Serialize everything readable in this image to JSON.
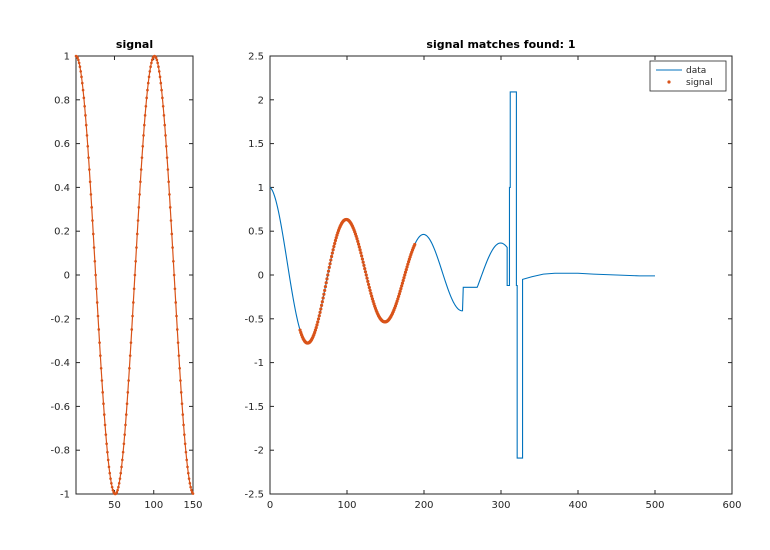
{
  "chart_data": [
    {
      "type": "line",
      "title": "signal",
      "xlim": [
        1,
        150
      ],
      "ylim": [
        -1,
        1
      ],
      "xticks": [
        50,
        100,
        150
      ],
      "yticks": [
        -1,
        -0.8,
        -0.6,
        -0.4,
        -0.2,
        0,
        0.2,
        0.4,
        0.6,
        0.8,
        1
      ],
      "xtick_labels": [
        "50",
        "100",
        "150"
      ],
      "ytick_labels": [
        "-1",
        "-0.8",
        "-0.6",
        "-0.4",
        "-0.2",
        "0",
        "0.2",
        "0.4",
        "0.6",
        "0.8",
        "1"
      ],
      "series": [
        {
          "name": "",
          "color": "#d95319",
          "marker": "dot",
          "x_start": 1,
          "x_end": 150,
          "function": "cos",
          "period": 100
        }
      ],
      "grid": false
    },
    {
      "type": "line",
      "title": "signal matches found: 1",
      "xlim": [
        0,
        600
      ],
      "ylim": [
        -2.5,
        2.5
      ],
      "xticks": [
        0,
        100,
        200,
        300,
        400,
        500,
        600
      ],
      "yticks": [
        -2.5,
        -2,
        -1.5,
        -1,
        -0.5,
        0,
        0.5,
        1,
        1.5,
        2,
        2.5
      ],
      "xtick_labels": [
        "0",
        "100",
        "200",
        "300",
        "400",
        "500",
        "600"
      ],
      "ytick_labels": [
        "-2.5",
        "-2",
        "-1.5",
        "-1",
        "-0.5",
        "0",
        "0.5",
        "1",
        "1.5",
        "2",
        "2.5"
      ],
      "legend": {
        "position": "top-right",
        "entries": [
          "data",
          "signal"
        ]
      },
      "series": [
        {
          "name": "data",
          "color": "#0072bd",
          "segments": [
            {
              "kind": "damped_cos",
              "x_start": 0,
              "x_end": 308,
              "period": 100,
              "decay": 0.002
            },
            {
              "kind": "steps",
              "points": [
                [
                  308,
                  -0.12
                ],
                [
                  311,
                  -0.12
                ],
                [
                  311,
                  1.0
                ],
                [
                  312,
                  1.0
                ],
                [
                  312,
                  2.09
                ],
                [
                  320,
                  2.09
                ],
                [
                  320,
                  -0.12
                ],
                [
                  321,
                  -0.12
                ],
                [
                  321,
                  -2.09
                ],
                [
                  328,
                  -2.09
                ],
                [
                  328,
                  -0.05
                ]
              ]
            },
            {
              "kind": "decay_tail",
              "points": [
                [
                  328,
                  -0.05
                ],
                [
                  340,
                  -0.02
                ],
                [
                  355,
                  0.01
                ],
                [
                  370,
                  0.02
                ],
                [
                  385,
                  0.02
                ],
                [
                  400,
                  0.02
                ],
                [
                  420,
                  0.01
                ],
                [
                  450,
                  0.0
                ],
                [
                  480,
                  -0.01
                ],
                [
                  500,
                  -0.01
                ]
              ]
            }
          ]
        },
        {
          "name": "signal",
          "color": "#d95319",
          "marker": "dot",
          "x_start": 39,
          "x_end": 188,
          "match_start_on_data": 39
        }
      ],
      "grid": false
    }
  ]
}
